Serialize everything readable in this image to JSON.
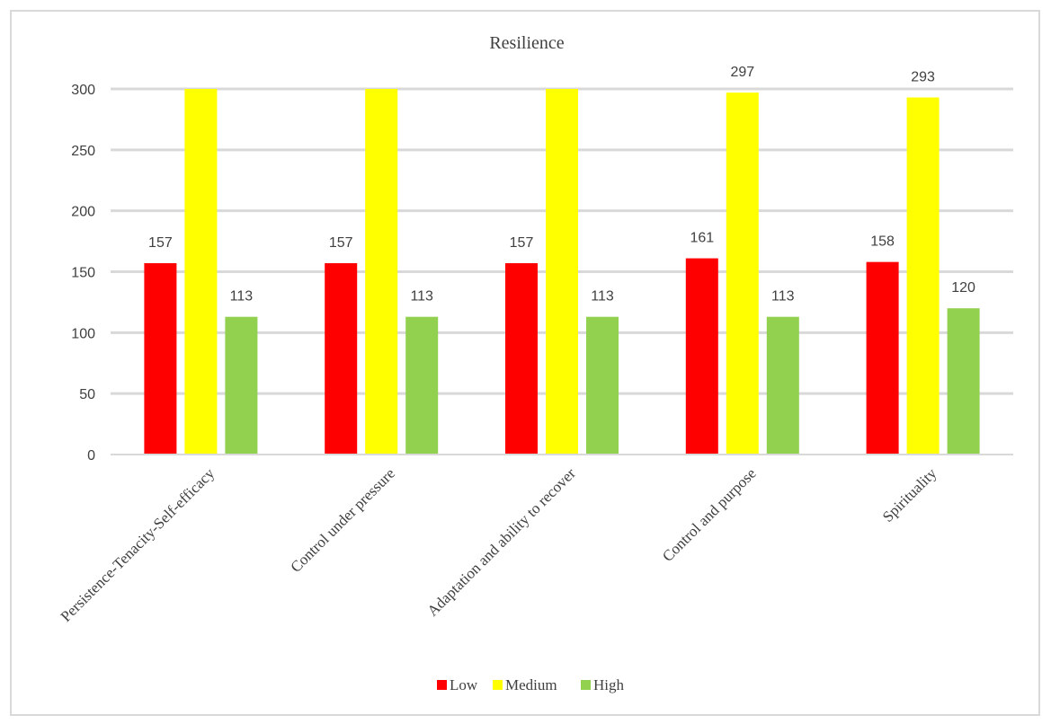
{
  "chart_data": {
    "type": "bar",
    "title": "Resilience",
    "categories": [
      "Persistence-Tenacity-Self-efficacy",
      "Control under pressure",
      "Adaptation and ability to recover",
      "Control and purpose",
      "Spirituality"
    ],
    "series": [
      {
        "name": "Low",
        "color": "#ff0000",
        "values": [
          157,
          157,
          157,
          161,
          158
        ],
        "labels": [
          "157",
          "157",
          "157",
          "161",
          "158"
        ]
      },
      {
        "name": "Medium",
        "color": "#ffff00",
        "values": [
          300,
          300,
          300,
          297,
          293
        ],
        "labels": [
          "",
          "",
          "",
          "297",
          "293"
        ]
      },
      {
        "name": "High",
        "color": "#92d050",
        "values": [
          113,
          113,
          113,
          113,
          120
        ],
        "labels": [
          "113",
          "113",
          "113",
          "113",
          "120"
        ]
      }
    ],
    "ylim": [
      0,
      300
    ],
    "yticks": [
      "0",
      "50",
      "100",
      "150",
      "200",
      "250",
      "300"
    ],
    "grid": true,
    "legend_position": "bottom"
  }
}
